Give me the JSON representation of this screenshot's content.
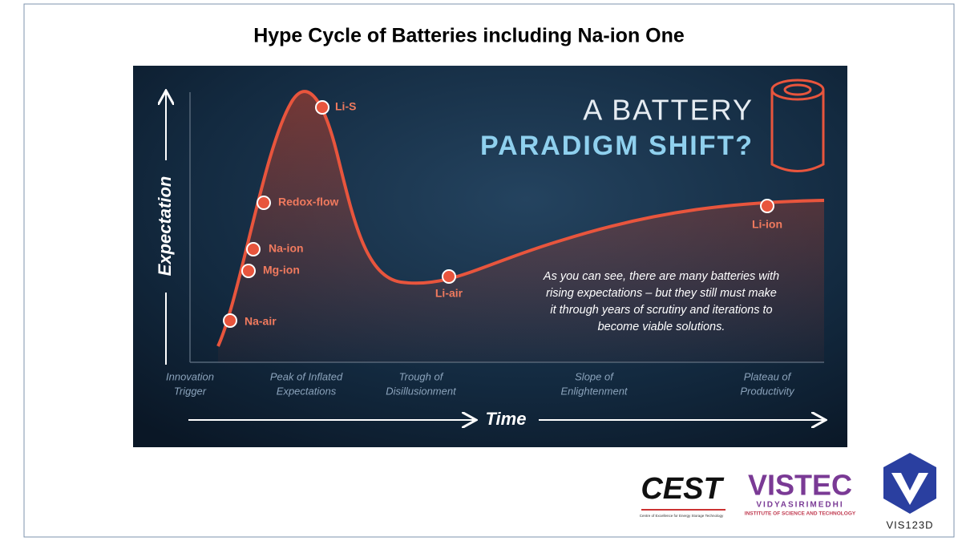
{
  "title": "Hype Cycle of Batteries including Na-ion One",
  "headline": [
    "A BATTERY",
    "PARADIGM SHIFT?"
  ],
  "y_axis_label": "Expectation",
  "x_axis_label": "Time",
  "phases": [
    [
      "Innovation",
      "Trigger"
    ],
    [
      "Peak of Inflated",
      "Expectations"
    ],
    [
      "Trough of",
      "Disillusionment"
    ],
    [
      "Slope of",
      "Enlightenment"
    ],
    [
      "Plateau of",
      "Productivity"
    ]
  ],
  "points": [
    "Li-S",
    "Redox-flow",
    "Na-ion",
    "Mg-ion",
    "Na-air",
    "Li-air",
    "Li-ion"
  ],
  "note": [
    "As you can see, there are many batteries with",
    "rising expectations – but they still must make",
    "it through years of scrutiny and iterations to",
    "become viable solutions."
  ],
  "logos": {
    "cest": "CEST",
    "cest_caption": "Centre of Excellence for Energy Storage Technology",
    "vistec": "VISTEC",
    "vistec_line1": "VIDYASIRIMEDHI",
    "vistec_line2": "INSTITUTE OF SCIENCE AND TECHNOLOGY",
    "vis": "VIS123D"
  }
}
